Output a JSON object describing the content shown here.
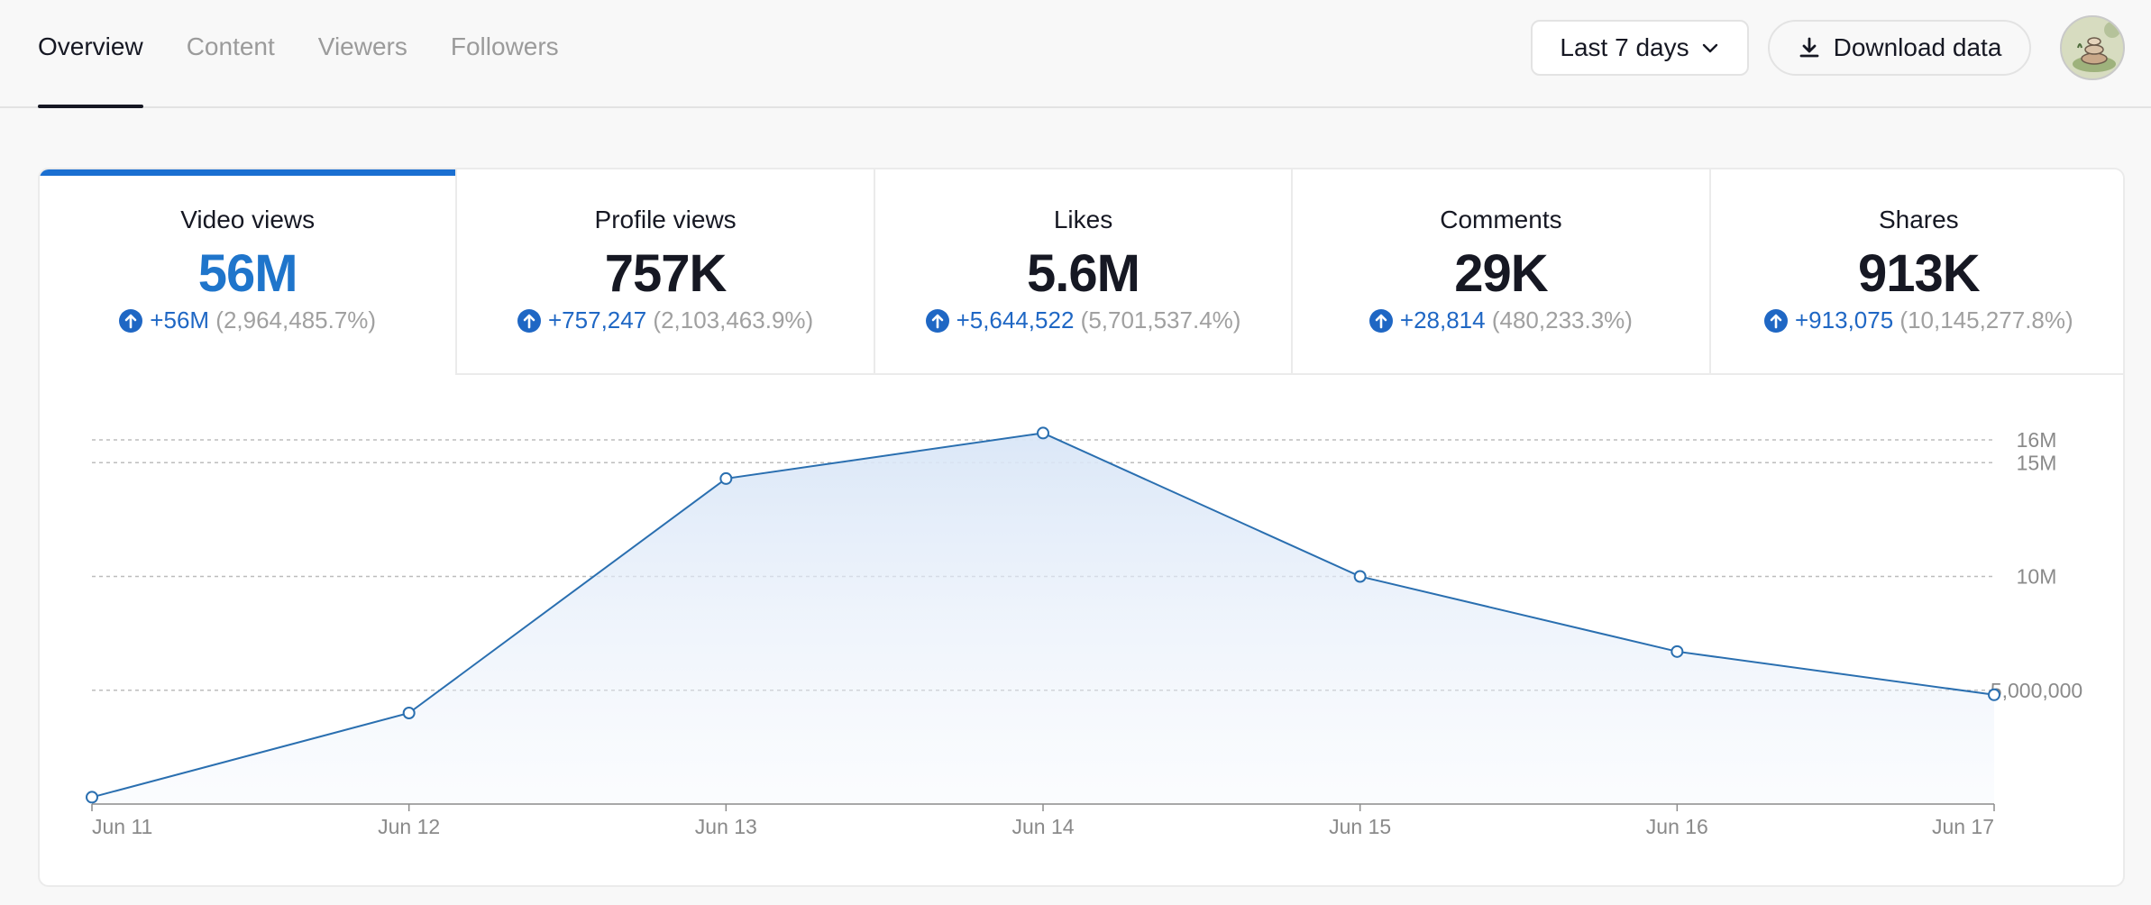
{
  "nav": {
    "tabs": [
      {
        "label": "Overview",
        "active": true
      },
      {
        "label": "Content",
        "active": false
      },
      {
        "label": "Viewers",
        "active": false
      },
      {
        "label": "Followers",
        "active": false
      }
    ]
  },
  "toolbar": {
    "range_label": "Last 7 days",
    "download_label": "Download data"
  },
  "icons": {
    "range": "chevron-down-icon",
    "download": "download-icon",
    "change": "arrow-up-circle-icon"
  },
  "colors": {
    "accent": "#1a6fd1",
    "line": "#2a6fb0",
    "delta": "#1f67c4",
    "muted": "#a0a0a0"
  },
  "metrics": [
    {
      "label": "Video views",
      "value": "56M",
      "delta": "+56M",
      "pct": "(2,964,485.7%)",
      "active": true
    },
    {
      "label": "Profile views",
      "value": "757K",
      "delta": "+757,247",
      "pct": "(2,103,463.9%)",
      "active": false
    },
    {
      "label": "Likes",
      "value": "5.6M",
      "delta": "+5,644,522",
      "pct": "(5,701,537.4%)",
      "active": false
    },
    {
      "label": "Comments",
      "value": "29K",
      "delta": "+28,814",
      "pct": "(480,233.3%)",
      "active": false
    },
    {
      "label": "Shares",
      "value": "913K",
      "delta": "+913,075",
      "pct": "(10,145,277.8%)",
      "active": false
    }
  ],
  "chart_data": {
    "type": "area",
    "categories": [
      "Jun 11",
      "Jun 12",
      "Jun 13",
      "Jun 14",
      "Jun 15",
      "Jun 16",
      "Jun 17"
    ],
    "values": [
      300000,
      4000000,
      14300000,
      16300000,
      10000000,
      6700000,
      4800000
    ],
    "y_ticks": [
      {
        "value": 5000000,
        "label": "5,000,000"
      },
      {
        "value": 10000000,
        "label": "10M"
      },
      {
        "value": 15000000,
        "label": "15M"
      },
      {
        "value": 16000000,
        "label": "16M"
      }
    ],
    "ylim": [
      0,
      16000000
    ],
    "grid": true,
    "legend": "none"
  }
}
